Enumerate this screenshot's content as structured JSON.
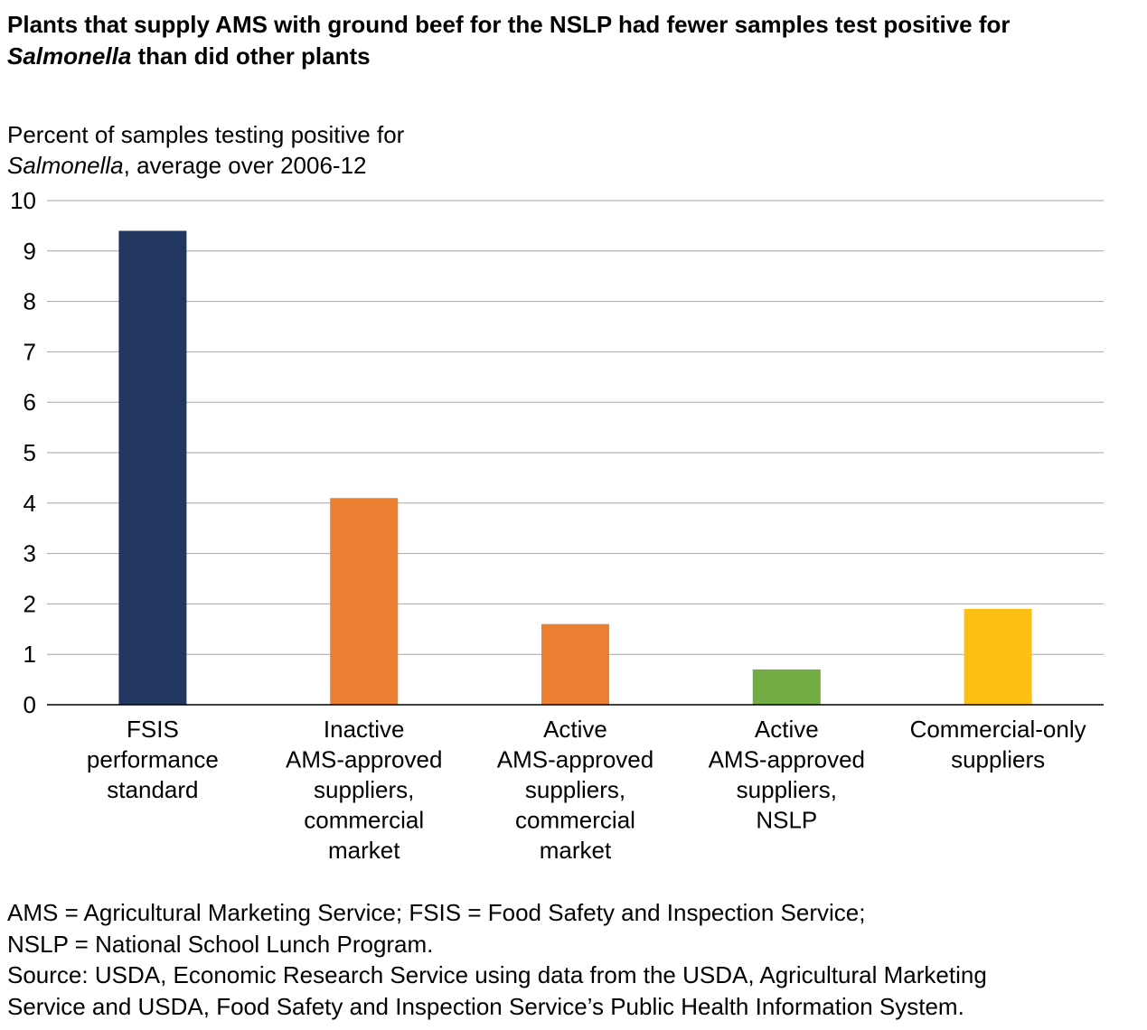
{
  "title": {
    "line1": "Plants that supply AMS with ground beef for the NSLP had fewer samples test positive for",
    "line2_italic": "Salmonella",
    "line2_rest": " than did other plants"
  },
  "y_axis_label": {
    "line1": "Percent of samples testing positive for",
    "line2_italic": "Salmonella",
    "line2_rest": ", average over 2006-12"
  },
  "colors": {
    "navy": "#22375F",
    "orange": "#ED7F32",
    "green": "#72AC42",
    "yellow": "#FCC014",
    "gridline": "#A6A6A6",
    "axis": "#000000"
  },
  "chart_data": {
    "type": "bar",
    "categories": [
      "FSIS performance standard",
      "Inactive AMS-approved suppliers, commercial market",
      "Active AMS-approved suppliers, commercial market",
      "Active AMS-approved suppliers, NSLP",
      "Commercial-only suppliers"
    ],
    "category_lines": [
      [
        "FSIS",
        "performance",
        "standard"
      ],
      [
        "Inactive",
        "AMS-approved",
        "suppliers,",
        "commercial",
        "market"
      ],
      [
        "Active",
        "AMS-approved",
        "suppliers,",
        "commercial",
        "market"
      ],
      [
        "Active",
        "AMS-approved",
        "suppliers,",
        "NSLP"
      ],
      [
        "Commercial-only",
        "suppliers"
      ]
    ],
    "values": [
      9.4,
      4.1,
      1.6,
      0.7,
      1.9
    ],
    "bar_colors": [
      "#22375F",
      "#ED7F32",
      "#ED7F32",
      "#72AC42",
      "#FCC014"
    ],
    "ylim": [
      0,
      10
    ],
    "yticks": [
      0,
      1,
      2,
      3,
      4,
      5,
      6,
      7,
      8,
      9,
      10
    ],
    "grid": true,
    "legend": "none"
  },
  "notes": {
    "abbrev1": "AMS = Agricultural Marketing Service; FSIS = Food Safety and Inspection Service;",
    "abbrev2": "NSLP = National School Lunch Program.",
    "source1": "Source: USDA, Economic Research Service using data from the USDA, Agricultural Marketing",
    "source2": "Service and USDA, Food Safety and Inspection Service’s Public Health Information System."
  }
}
